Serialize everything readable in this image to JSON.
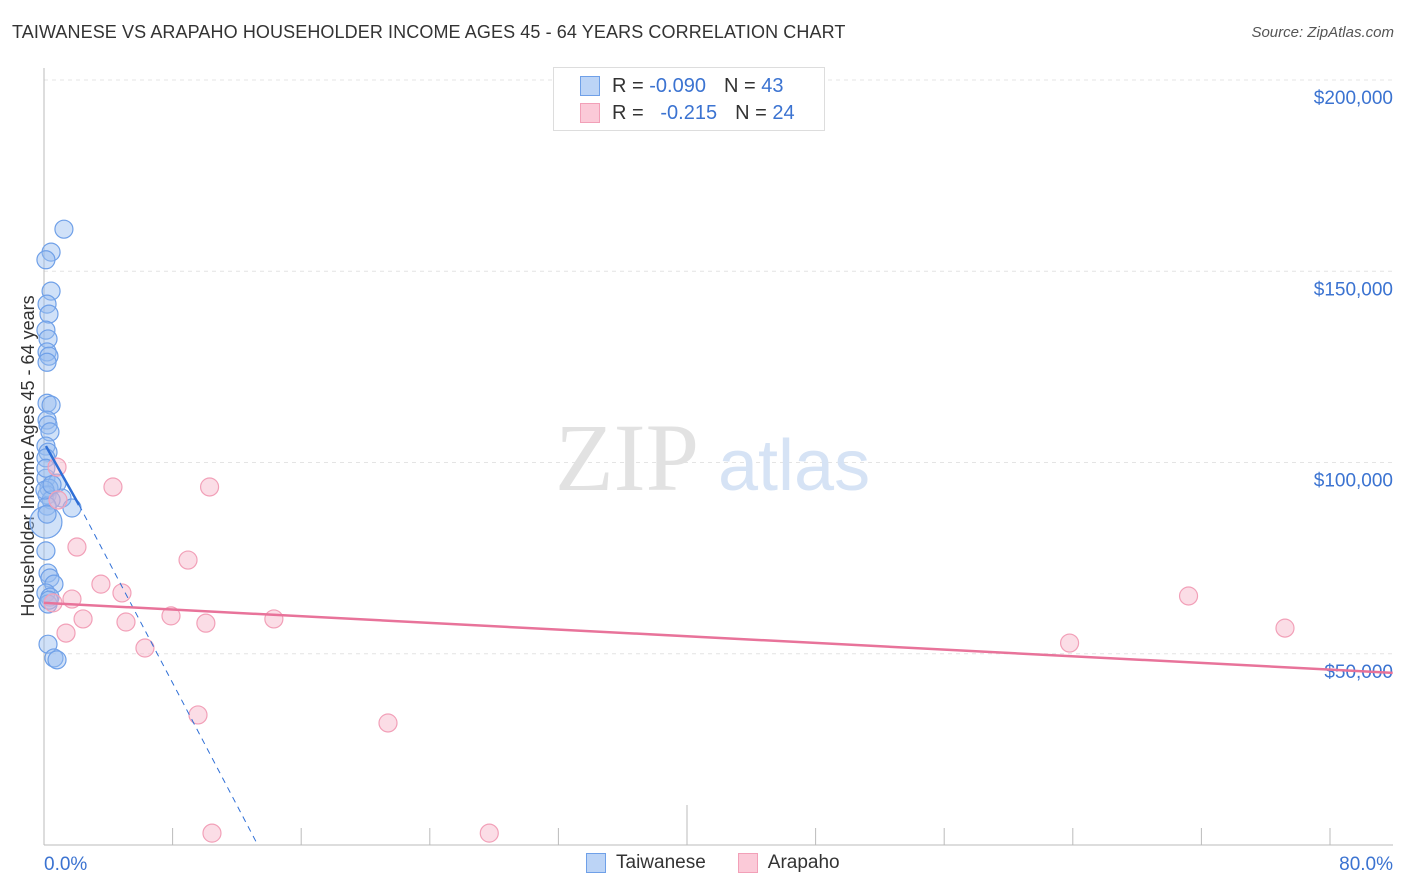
{
  "title": "TAIWANESE VS ARAPAHO HOUSEHOLDER INCOME AGES 45 - 64 YEARS CORRELATION CHART",
  "source": "Source: ZipAtlas.com",
  "watermark": "ZIPatlas",
  "legend": {
    "rows": [
      {
        "r_label": "R =",
        "r_value": "-0.090",
        "n_label": "N =",
        "n_value": "43"
      },
      {
        "r_label": "R =",
        "r_value": "-0.215",
        "n_label": "N =",
        "n_value": "24"
      }
    ]
  },
  "chart_data": {
    "type": "scatter",
    "title": "TAIWANESE VS ARAPAHO HOUSEHOLDER INCOME AGES 45 - 64 YEARS CORRELATION CHART",
    "xlabel": "",
    "ylabel": "Householder Income Ages 45 - 64 years",
    "xlim": [
      0,
      80
    ],
    "ylim": [
      0,
      200000
    ],
    "x_tick_labels": [
      "0.0%",
      "80.0%"
    ],
    "y_tick_labels": [
      "$50,000",
      "$100,000",
      "$150,000",
      "$200,000"
    ],
    "y_ticks": [
      50000,
      100000,
      150000,
      200000
    ],
    "grid": true,
    "legend_placement": "bottom",
    "series": [
      {
        "name": "Taiwanese",
        "color": "#6fa0e8",
        "line_color": "#2f6fd6",
        "trend": {
          "x": [
            0.12,
            2.18
          ],
          "y": [
            104300,
            88900
          ],
          "dash_to": [
            13.3,
            0
          ]
        },
        "points": [
          [
            1.24,
            161000
          ],
          [
            0.44,
            155000
          ],
          [
            0.12,
            153000
          ],
          [
            0.44,
            144800
          ],
          [
            0.19,
            141400
          ],
          [
            0.31,
            138800
          ],
          [
            0.12,
            134600
          ],
          [
            0.25,
            132300
          ],
          [
            0.19,
            128900
          ],
          [
            0.31,
            127800
          ],
          [
            0.19,
            126200
          ],
          [
            0.19,
            115500
          ],
          [
            0.44,
            115000
          ],
          [
            0.19,
            111100
          ],
          [
            0.25,
            109800
          ],
          [
            0.37,
            108000
          ],
          [
            0.12,
            104300
          ],
          [
            0.25,
            102700
          ],
          [
            0.12,
            101200
          ],
          [
            0.12,
            95900
          ],
          [
            0.81,
            94600
          ],
          [
            0.31,
            93300
          ],
          [
            0.19,
            91500
          ],
          [
            1.12,
            90700
          ],
          [
            0.44,
            90200
          ],
          [
            0.19,
            88600
          ],
          [
            1.74,
            88100
          ],
          [
            0.12,
            84400
          ],
          [
            0.12,
            76900
          ],
          [
            0.25,
            71100
          ],
          [
            0.37,
            69800
          ],
          [
            0.62,
            68200
          ],
          [
            0.12,
            65900
          ],
          [
            0.37,
            64800
          ],
          [
            0.25,
            63000
          ],
          [
            0.25,
            52500
          ],
          [
            0.62,
            48900
          ],
          [
            0.81,
            48400
          ],
          [
            0.06,
            92800
          ],
          [
            0.12,
            98500
          ],
          [
            0.31,
            64000
          ],
          [
            0.19,
            86500
          ],
          [
            0.5,
            94200
          ]
        ]
      },
      {
        "name": "Arapaho",
        "color": "#f2a0b8",
        "line_color": "#e8739a",
        "trend": {
          "x": [
            0,
            83.9
          ],
          "y": [
            63300,
            45000
          ]
        },
        "points": [
          [
            0.81,
            98800
          ],
          [
            4.29,
            93600
          ],
          [
            10.3,
            93600
          ],
          [
            0.87,
            90200
          ],
          [
            2.05,
            77900
          ],
          [
            8.96,
            74500
          ],
          [
            3.54,
            68200
          ],
          [
            4.85,
            65900
          ],
          [
            1.74,
            64300
          ],
          [
            0.56,
            63300
          ],
          [
            2.43,
            59100
          ],
          [
            7.9,
            59900
          ],
          [
            5.1,
            58300
          ],
          [
            10.07,
            58000
          ],
          [
            14.3,
            59100
          ],
          [
            1.37,
            55400
          ],
          [
            6.28,
            51500
          ],
          [
            9.58,
            34000
          ],
          [
            21.4,
            31900
          ],
          [
            10.45,
            3100
          ],
          [
            27.7,
            3100
          ],
          [
            63.8,
            52800
          ],
          [
            71.2,
            65100
          ],
          [
            77.2,
            56700
          ]
        ]
      }
    ]
  }
}
